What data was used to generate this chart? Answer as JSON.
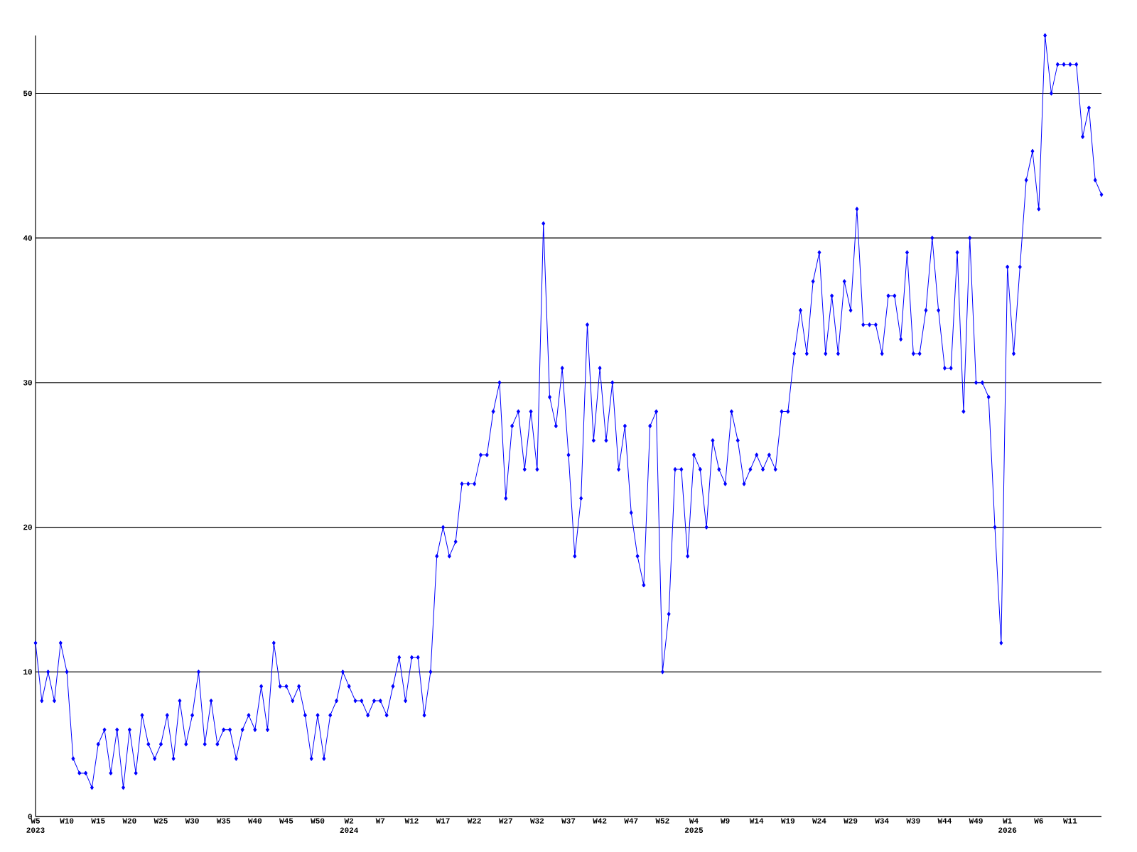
{
  "chart_data": {
    "type": "line",
    "categories": [
      "W5 2023",
      null,
      null,
      null,
      null,
      "W10",
      null,
      null,
      null,
      null,
      "W15",
      null,
      null,
      null,
      null,
      "W20",
      null,
      null,
      null,
      null,
      "W25",
      null,
      null,
      null,
      null,
      "W30",
      null,
      null,
      null,
      null,
      "W35",
      null,
      null,
      null,
      null,
      "W40",
      null,
      null,
      null,
      null,
      "W45",
      null,
      null,
      null,
      null,
      "W50",
      null,
      null,
      null,
      null,
      "W2 2024",
      null,
      null,
      null,
      null,
      "W7",
      null,
      null,
      null,
      null,
      "W12",
      null,
      null,
      null,
      null,
      "W17",
      null,
      null,
      null,
      null,
      "W22",
      null,
      null,
      null,
      null,
      "W27",
      null,
      null,
      null,
      null,
      "W32",
      null,
      null,
      null,
      null,
      "W37",
      null,
      null,
      null,
      null,
      "W42",
      null,
      null,
      null,
      null,
      "W47",
      null,
      null,
      null,
      null,
      "W52",
      null,
      null,
      null,
      null,
      "W4 2025",
      null,
      null,
      null,
      null,
      "W9",
      null,
      null,
      null,
      null,
      "W14",
      null,
      null,
      null,
      null,
      "W19",
      null,
      null,
      null,
      null,
      "W24",
      null,
      null,
      null,
      null,
      "W29",
      null,
      null,
      null,
      null,
      "W34",
      null,
      null,
      null,
      null,
      "W39",
      null,
      null,
      null,
      null,
      "W44",
      null,
      null,
      null,
      null,
      "W49",
      null,
      null,
      null,
      null,
      "W1 2026",
      null,
      null,
      null,
      null,
      "W6",
      null,
      null,
      null,
      null,
      "W11",
      null,
      null,
      null,
      null,
      null
    ],
    "values": [
      12,
      8,
      10,
      8,
      12,
      10,
      4,
      3,
      3,
      2,
      5,
      6,
      3,
      6,
      2,
      6,
      3,
      7,
      5,
      4,
      5,
      7,
      4,
      8,
      5,
      7,
      10,
      5,
      8,
      5,
      6,
      6,
      4,
      6,
      7,
      6,
      9,
      6,
      12,
      9,
      9,
      8,
      9,
      7,
      4,
      7,
      4,
      7,
      8,
      10,
      9,
      8,
      8,
      7,
      8,
      8,
      7,
      9,
      11,
      8,
      11,
      11,
      7,
      10,
      18,
      20,
      18,
      19,
      23,
      23,
      23,
      25,
      25,
      28,
      30,
      22,
      27,
      28,
      24,
      28,
      24,
      41,
      29,
      27,
      31,
      25,
      18,
      22,
      34,
      26,
      31,
      26,
      30,
      24,
      27,
      21,
      18,
      16,
      27,
      28,
      10,
      14,
      24,
      24,
      18,
      25,
      24,
      20,
      26,
      24,
      23,
      28,
      26,
      23,
      24,
      25,
      24,
      25,
      24,
      28,
      28,
      32,
      35,
      32,
      37,
      39,
      32,
      36,
      32,
      37,
      35,
      42,
      34,
      34,
      34,
      32,
      36,
      36,
      33,
      39,
      32,
      32,
      35,
      40,
      35,
      31,
      31,
      39,
      28,
      40,
      30,
      30,
      29,
      20,
      12,
      38,
      32,
      38,
      44,
      46,
      42,
      54,
      50,
      52,
      52,
      52,
      52,
      47,
      49,
      44,
      43
    ],
    "color": "#0000ff",
    "ylim": [
      0,
      54
    ],
    "yticks": [
      0,
      10,
      20,
      30,
      40,
      50
    ],
    "grid": "y",
    "marker": "diamond"
  }
}
